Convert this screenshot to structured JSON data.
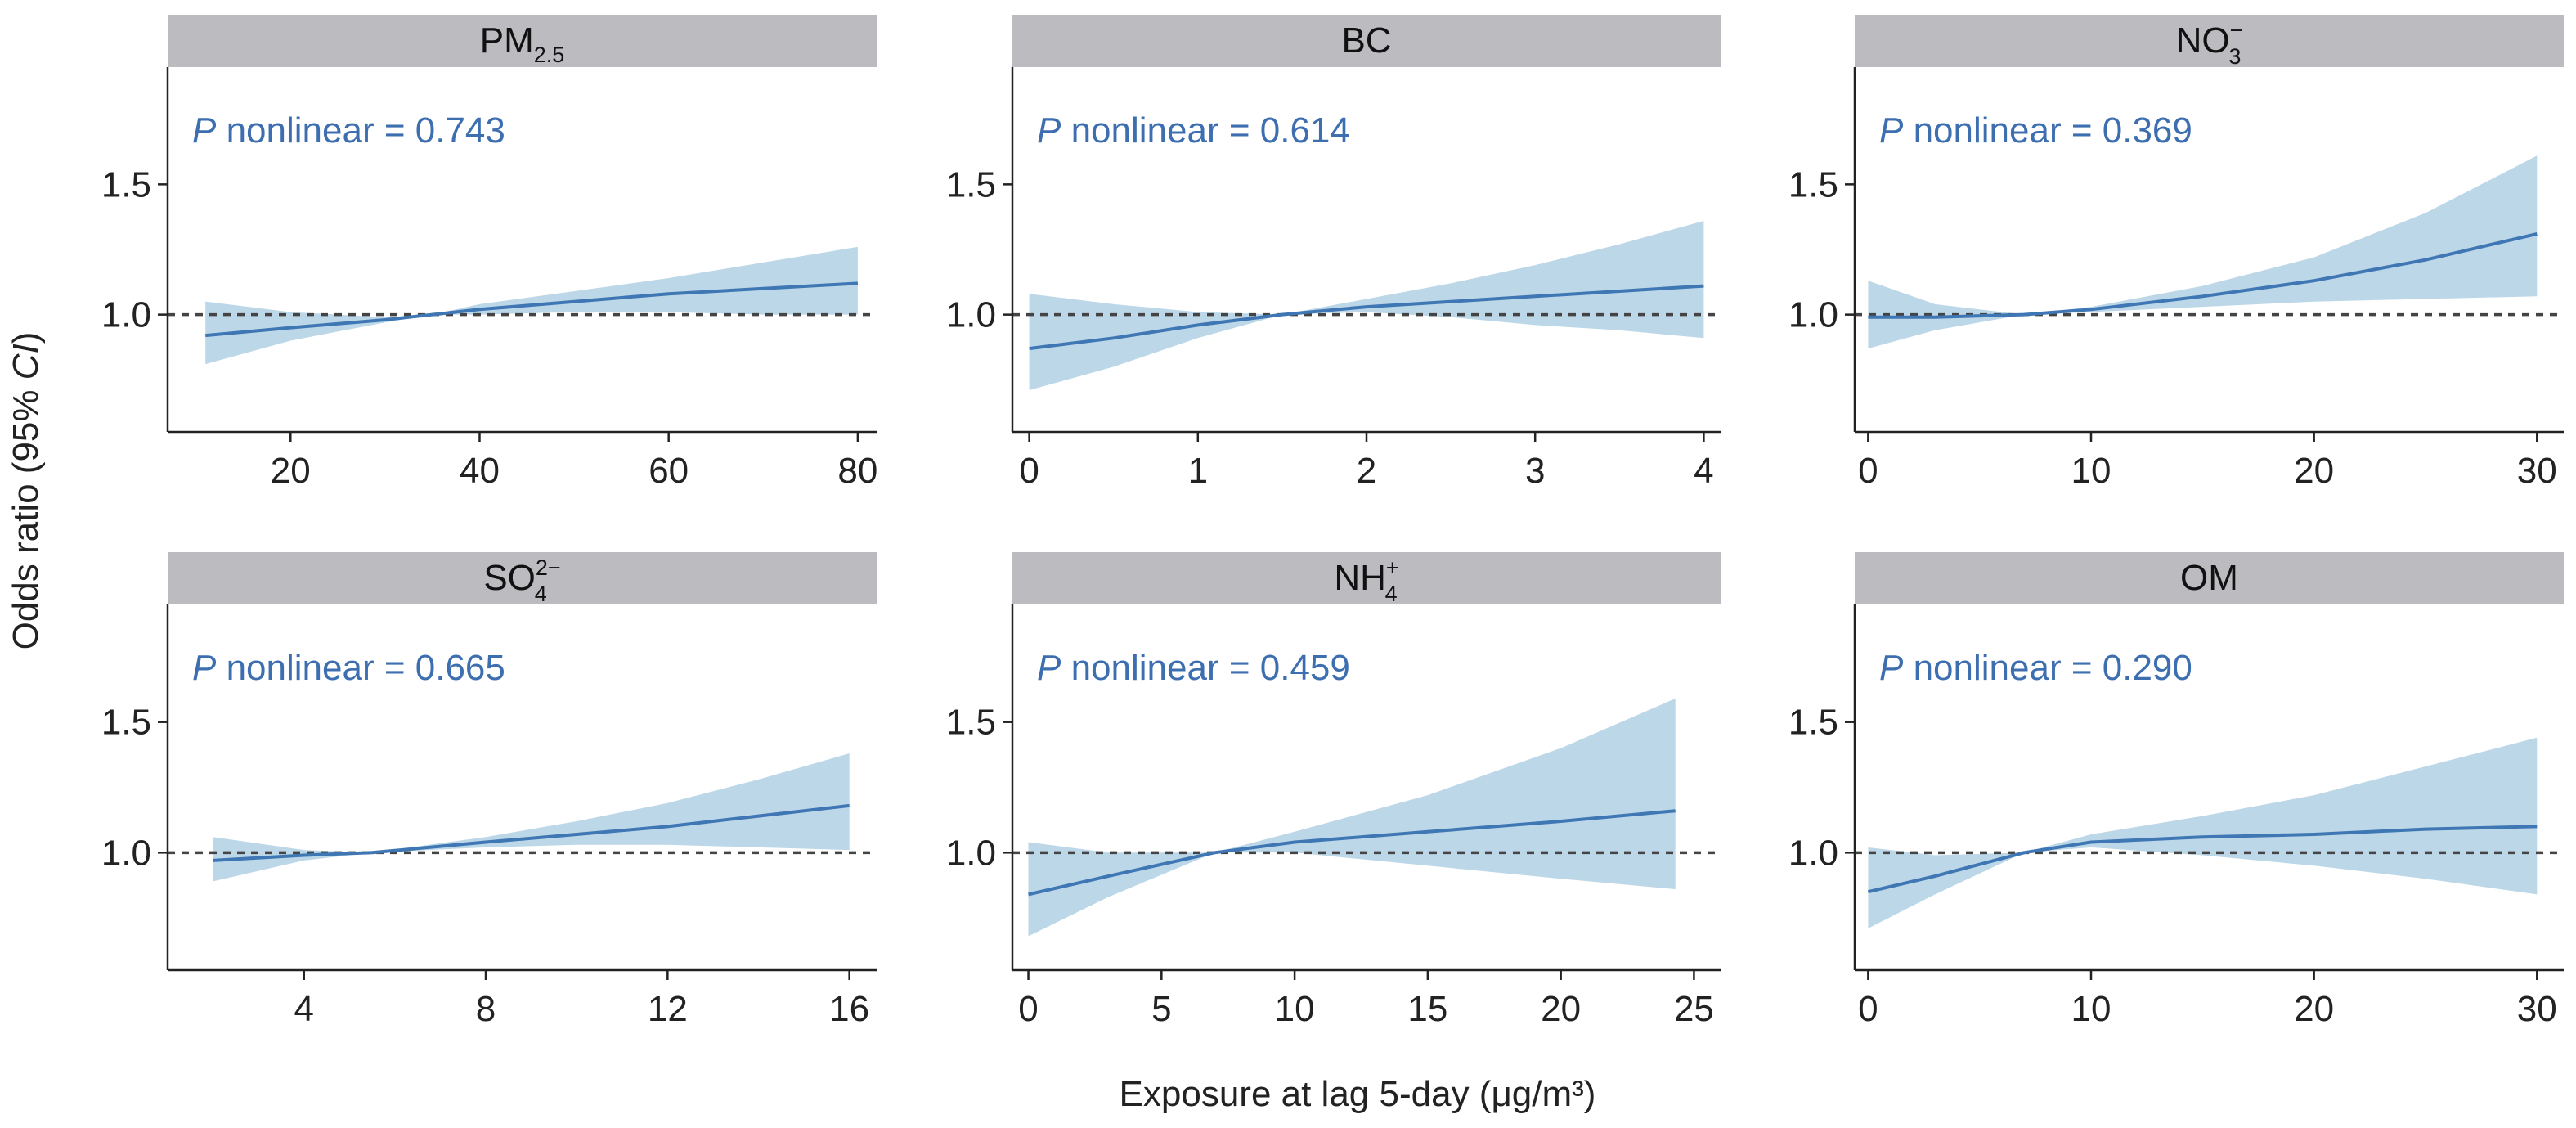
{
  "ylabel": "Odds ratio (95% CI)",
  "ylabel_main": "Odds ratio (95% ",
  "ylabel_italic": "CI",
  "ylabel_close": ")",
  "xlabel": "Exposure at lag 5-day (μg/m³)",
  "colors": {
    "line": "#3f76b4",
    "band": "#bcd7e7",
    "strip": "#bcbcc0",
    "text_blue": "#3d6fb0",
    "reference": "#444444"
  },
  "chart_data": [
    {
      "type": "line",
      "strip_main": "PM",
      "strip_sub": "2.5",
      "strip_sup": "",
      "p_italic": "P",
      "p_text": " nonlinear = 0.743",
      "xlim": [
        7,
        82
      ],
      "ylim": [
        0.55,
        1.95
      ],
      "reference_y": 1.0,
      "x_ticks": [
        20,
        40,
        60,
        80
      ],
      "x_tick_labels": [
        "20",
        "40",
        "60",
        "80"
      ],
      "y_ticks": [
        1.0,
        1.5
      ],
      "y_tick_labels": [
        "1.0",
        "1.5"
      ],
      "x": [
        11,
        20,
        30,
        35,
        40,
        50,
        60,
        70,
        80
      ],
      "or": [
        0.92,
        0.95,
        0.98,
        1.0,
        1.02,
        1.05,
        1.08,
        1.1,
        1.12
      ],
      "lower": [
        0.81,
        0.9,
        0.97,
        1.0,
        1.0,
        1.01,
        1.01,
        1.0,
        1.0
      ],
      "upper": [
        1.05,
        1.01,
        0.99,
        1.0,
        1.04,
        1.09,
        1.14,
        1.2,
        1.26
      ]
    },
    {
      "type": "line",
      "strip_main": "BC",
      "strip_sub": "",
      "strip_sup": "",
      "p_italic": "P",
      "p_text": " nonlinear = 0.614",
      "xlim": [
        -0.1,
        4.1
      ],
      "ylim": [
        0.55,
        1.95
      ],
      "reference_y": 1.0,
      "x_ticks": [
        0,
        1,
        2,
        3,
        4
      ],
      "x_tick_labels": [
        "0",
        "1",
        "2",
        "3",
        "4"
      ],
      "y_ticks": [
        1.0,
        1.5
      ],
      "y_tick_labels": [
        "1.0",
        "1.5"
      ],
      "x": [
        0,
        0.5,
        1.0,
        1.5,
        2.0,
        2.5,
        3.0,
        3.5,
        4.0
      ],
      "or": [
        0.87,
        0.91,
        0.96,
        1.0,
        1.03,
        1.05,
        1.07,
        1.09,
        1.11
      ],
      "lower": [
        0.71,
        0.8,
        0.91,
        1.0,
        1.01,
        0.99,
        0.96,
        0.94,
        0.91
      ],
      "upper": [
        1.08,
        1.04,
        1.01,
        1.0,
        1.06,
        1.12,
        1.19,
        1.27,
        1.36
      ]
    },
    {
      "type": "line",
      "strip_main": "NO",
      "strip_sub": "3",
      "strip_sup": "−",
      "p_italic": "P",
      "p_text": " nonlinear = 0.369",
      "xlim": [
        -0.6,
        31.2
      ],
      "ylim": [
        0.55,
        1.95
      ],
      "reference_y": 1.0,
      "x_ticks": [
        0,
        10,
        20,
        30
      ],
      "x_tick_labels": [
        "0",
        "10",
        "20",
        "30"
      ],
      "y_ticks": [
        1.0,
        1.5
      ],
      "y_tick_labels": [
        "1.0",
        "1.5"
      ],
      "x": [
        0,
        3,
        7,
        10,
        15,
        20,
        25,
        30
      ],
      "or": [
        0.99,
        0.99,
        1.0,
        1.02,
        1.07,
        1.13,
        1.21,
        1.31
      ],
      "lower": [
        0.87,
        0.94,
        1.0,
        1.01,
        1.03,
        1.05,
        1.06,
        1.07
      ],
      "upper": [
        1.13,
        1.04,
        1.0,
        1.03,
        1.11,
        1.22,
        1.39,
        1.61
      ]
    },
    {
      "type": "line",
      "strip_main": "SO",
      "strip_sub": "4",
      "strip_sup": "2−",
      "p_italic": "P",
      "p_text": " nonlinear = 0.665",
      "xlim": [
        1.0,
        16.6
      ],
      "ylim": [
        0.55,
        1.95
      ],
      "reference_y": 1.0,
      "x_ticks": [
        4,
        8,
        12,
        16
      ],
      "x_tick_labels": [
        "4",
        "8",
        "12",
        "16"
      ],
      "y_ticks": [
        1.0,
        1.5
      ],
      "y_tick_labels": [
        "1.0",
        "1.5"
      ],
      "x": [
        2,
        4,
        5.5,
        8,
        10,
        12,
        14,
        16
      ],
      "or": [
        0.97,
        0.99,
        1.0,
        1.04,
        1.07,
        1.1,
        1.14,
        1.18
      ],
      "lower": [
        0.89,
        0.97,
        1.0,
        1.02,
        1.03,
        1.03,
        1.02,
        1.01
      ],
      "upper": [
        1.06,
        1.01,
        1.0,
        1.06,
        1.12,
        1.19,
        1.28,
        1.38
      ]
    },
    {
      "type": "line",
      "strip_main": "NH",
      "strip_sub": "4",
      "strip_sup": "+",
      "p_italic": "P",
      "p_text": " nonlinear = 0.459",
      "xlim": [
        -0.6,
        26.0
      ],
      "ylim": [
        0.55,
        1.95
      ],
      "reference_y": 1.0,
      "x_ticks": [
        0,
        5,
        10,
        15,
        20,
        25
      ],
      "x_tick_labels": [
        "0",
        "5",
        "10",
        "15",
        "20",
        "25"
      ],
      "y_ticks": [
        1.0,
        1.5
      ],
      "y_tick_labels": [
        "1.0",
        "1.5"
      ],
      "x": [
        0,
        3,
        7,
        10,
        15,
        20,
        24.3
      ],
      "or": [
        0.84,
        0.91,
        1.0,
        1.04,
        1.08,
        1.12,
        1.16
      ],
      "lower": [
        0.68,
        0.83,
        1.0,
        1.0,
        0.95,
        0.9,
        0.86
      ],
      "upper": [
        1.04,
        1.0,
        1.0,
        1.08,
        1.22,
        1.4,
        1.59
      ]
    },
    {
      "type": "line",
      "strip_main": "OM",
      "strip_sub": "",
      "strip_sup": "",
      "p_italic": "P",
      "p_text": " nonlinear = 0.290",
      "xlim": [
        -0.6,
        31.2
      ],
      "ylim": [
        0.55,
        1.95
      ],
      "reference_y": 1.0,
      "x_ticks": [
        0,
        10,
        20,
        30
      ],
      "x_tick_labels": [
        "0",
        "10",
        "20",
        "30"
      ],
      "y_ticks": [
        1.0,
        1.5
      ],
      "y_tick_labels": [
        "1.0",
        "1.5"
      ],
      "x": [
        0,
        3,
        7,
        10,
        15,
        20,
        25,
        30
      ],
      "or": [
        0.85,
        0.91,
        1.0,
        1.04,
        1.06,
        1.07,
        1.09,
        1.1
      ],
      "lower": [
        0.71,
        0.84,
        1.0,
        1.02,
        0.99,
        0.95,
        0.9,
        0.84
      ],
      "upper": [
        1.02,
        0.99,
        1.0,
        1.07,
        1.14,
        1.22,
        1.33,
        1.44
      ]
    }
  ]
}
